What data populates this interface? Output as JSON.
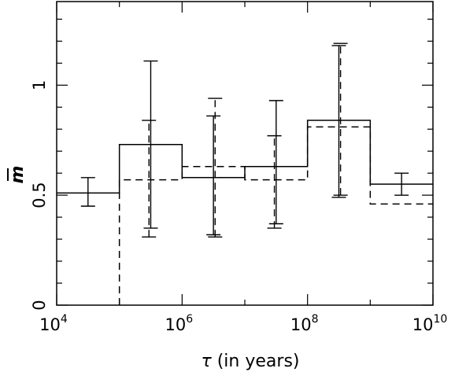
{
  "chart_data": {
    "type": "line",
    "title": "",
    "xlabel": {
      "symbol": "τ",
      "text": " (in years)"
    },
    "ylabel": {
      "symbol": "m",
      "bar": true
    },
    "x_scale": "log",
    "xlim": [
      10000,
      10000000000
    ],
    "ylim": [
      0,
      1.38
    ],
    "x_ticks": [
      {
        "base": "10",
        "exp": "4",
        "value": 10000
      },
      {
        "base": "10",
        "exp": "6",
        "value": 1000000
      },
      {
        "base": "10",
        "exp": "8",
        "value": 100000000
      },
      {
        "base": "10",
        "exp": "10",
        "value": 10000000000
      }
    ],
    "y_ticks": [
      {
        "label": "0",
        "value": 0
      },
      {
        "label": "0.5",
        "value": 0.5
      },
      {
        "label": "1",
        "value": 1
      }
    ],
    "series": [
      {
        "style": "solid",
        "bins": [
          {
            "x0": 10000,
            "x1": 100000,
            "y": 0.51
          },
          {
            "x0": 100000,
            "x1": 1000000,
            "y": 0.73
          },
          {
            "x0": 1000000,
            "x1": 10000000,
            "y": 0.58
          },
          {
            "x0": 10000000,
            "x1": 100000000,
            "y": 0.63
          },
          {
            "x0": 100000000,
            "x1": 1000000000,
            "y": 0.84
          },
          {
            "x0": 1000000000,
            "x1": 10000000000,
            "y": 0.55
          }
        ],
        "error_bars": [
          {
            "x": 31600,
            "lo": 0.45,
            "hi": 0.58
          },
          {
            "x": 316000,
            "lo": 0.35,
            "hi": 1.11
          },
          {
            "x": 3160000,
            "lo": 0.32,
            "hi": 0.86
          },
          {
            "x": 31600000,
            "lo": 0.37,
            "hi": 0.93
          },
          {
            "x": 316000000,
            "lo": 0.49,
            "hi": 1.18
          },
          {
            "x": 3160000000,
            "lo": 0.5,
            "hi": 0.6
          }
        ]
      },
      {
        "style": "dashed",
        "bins": [
          {
            "x0": 100000,
            "x1": 1000000,
            "y": 0.57
          },
          {
            "x0": 1000000,
            "x1": 10000000,
            "y": 0.63
          },
          {
            "x0": 10000000,
            "x1": 100000000,
            "y": 0.57
          },
          {
            "x0": 100000000,
            "x1": 1000000000,
            "y": 0.81
          },
          {
            "x0": 1000000000,
            "x1": 10000000000,
            "y": 0.46
          }
        ],
        "error_bars": [
          {
            "x": 296000,
            "lo": 0.31,
            "hi": 0.84
          },
          {
            "x": 3360000,
            "lo": 0.31,
            "hi": 0.94
          },
          {
            "x": 29600000,
            "lo": 0.35,
            "hi": 0.77
          },
          {
            "x": 336000000,
            "lo": 0.5,
            "hi": 1.19
          }
        ]
      }
    ]
  }
}
